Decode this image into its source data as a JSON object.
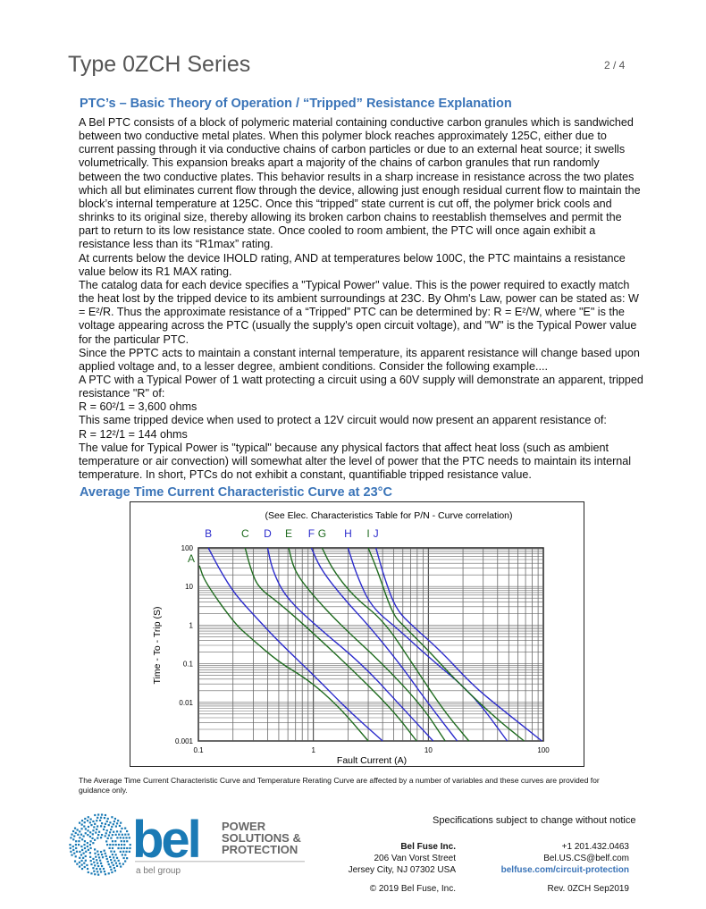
{
  "header": {
    "title": "Type 0ZCH Series",
    "page": "2 / 4"
  },
  "theory": {
    "heading": "PTC’s – Basic Theory of Operation / “Tripped” Resistance Explanation",
    "paragraphs": [
      "A Bel PTC consists of a block of polymeric material containing conductive carbon granules which is sandwiched between two conductive metal plates.  When this polymer block reaches approximately 125C, either due to current passing through it via conductive chains of carbon particles or due to an external heat source; it swells volumetrically.  This expansion breaks apart a majority of the chains of carbon granules that run randomly between the two conductive plates.  This behavior results in a sharp increase in resistance across the two plates which all but eliminates current flow through the device, allowing just enough residual current flow to maintain the block’s internal temperature at 125C.  Once this “tripped” state current is cut off, the polymer brick cools and shrinks to its original size, thereby allowing its broken carbon chains to reestablish themselves and permit the part to return to its low resistance state.  Once cooled to room ambient, the PTC will once again exhibit a resistance less than its “R1max” rating.",
      "At currents below the device IHOLD rating, AND at temperatures below 100C, the PTC maintains a resistance value below its R1 MAX rating.",
      "The catalog data for each device specifies a \"Typical Power\" value. This is the power required to exactly match the heat lost by the tripped device to its ambient surroundings at 23C. By Ohm's Law, power can be stated as: W = E²/R. Thus the approximate resistance of a “Tripped” PTC can be determined by: R = E²/W, where \"E\" is the voltage appearing across the PTC (usually the supply's open circuit voltage), and \"W\" is the Typical Power value for the particular PTC.",
      "Since the PPTC acts to maintain a constant internal temperature, its apparent resistance will change based upon applied voltage and, to a lesser degree, ambient conditions. Consider the following example....",
      "A PTC with a Typical Power of 1 watt protecting a circuit using a 60V supply will demonstrate an apparent, tripped resistance \"R\" of:",
      "R = 60²/1 = 3,600 ohms",
      "This same tripped device when used to protect a 12V circuit would now present an apparent resistance of:",
      "R = 12²/1 = 144 ohms",
      "The value for Typical Power is \"typical\" because any physical factors that affect heat loss (such as ambient temperature or air convection) will somewhat alter the level of power that the PTC needs to maintain its internal temperature. In short, PTCs do not exhibit a constant, quantifiable tripped resistance value."
    ]
  },
  "curve_section": {
    "heading": "Average Time Current Characteristic Curve at 23°C"
  },
  "chart_data": {
    "type": "line",
    "title": "(See Elec. Characteristics Table for P/N - Curve correlation)",
    "xlabel": "Fault Current (A)",
    "ylabel": "Time - To - Trip (S)",
    "xscale": "log",
    "yscale": "log",
    "xlim": [
      0.1,
      100
    ],
    "ylim": [
      0.001,
      100
    ],
    "xticks": [
      "0.1",
      "1",
      "10",
      "100"
    ],
    "yticks": [
      "100",
      "10",
      "1",
      "0.1",
      "0.01",
      "0.001"
    ],
    "grid": true,
    "colors": {
      "blue": "#2b2bcc",
      "green": "#1f6b1f"
    },
    "series": [
      {
        "name": "A",
        "color": "green",
        "points": [
          [
            0.102,
            34.7
          ],
          [
            0.114,
            13
          ],
          [
            0.207,
            1.09
          ],
          [
            0.279,
            0.49
          ],
          [
            0.5,
            0.11
          ],
          [
            0.92,
            0.037
          ],
          [
            1.67,
            0.0077
          ],
          [
            3.0,
            0.001
          ]
        ]
      },
      {
        "name": "B",
        "color": "blue",
        "points": [
          [
            0.122,
            100
          ],
          [
            0.154,
            26.5
          ],
          [
            0.207,
            6.4
          ],
          [
            0.31,
            1.7
          ],
          [
            0.5,
            0.37
          ],
          [
            1.04,
            0.046
          ],
          [
            2.0,
            0.0063
          ],
          [
            4.0,
            0.001
          ]
        ]
      },
      {
        "name": "C",
        "color": "green",
        "points": [
          [
            0.255,
            100
          ],
          [
            0.287,
            26.5
          ],
          [
            0.334,
            9.2
          ],
          [
            0.5,
            3.8
          ],
          [
            0.92,
            0.77
          ],
          [
            2.25,
            0.064
          ],
          [
            4.9,
            0.0063
          ],
          [
            7.9,
            0.001
          ]
        ]
      },
      {
        "name": "D",
        "color": "blue",
        "points": [
          [
            0.4,
            100
          ],
          [
            0.44,
            26.5
          ],
          [
            0.57,
            5.4
          ],
          [
            1.04,
            1.0
          ],
          [
            2.7,
            0.093
          ],
          [
            5.5,
            0.0093
          ],
          [
            11,
            0.001
          ]
        ]
      },
      {
        "name": "E",
        "color": "green",
        "points": [
          [
            0.61,
            100
          ],
          [
            0.68,
            26.5
          ],
          [
            0.92,
            7.6
          ],
          [
            1.67,
            1.1
          ],
          [
            4.1,
            0.093
          ],
          [
            8.9,
            0.0077
          ],
          [
            14,
            0.001
          ]
        ]
      },
      {
        "name": "F",
        "color": "blue",
        "points": [
          [
            0.96,
            100
          ],
          [
            1.17,
            26.5
          ],
          [
            1.88,
            4.5
          ],
          [
            3.0,
            1.0
          ],
          [
            5.5,
            0.11
          ],
          [
            10,
            0.0093
          ],
          [
            17.8,
            0.001
          ]
        ]
      },
      {
        "name": "G",
        "color": "green",
        "points": [
          [
            1.19,
            100
          ],
          [
            1.48,
            26.5
          ],
          [
            2.25,
            5.4
          ],
          [
            4.1,
            1.3
          ],
          [
            7.4,
            0.093
          ],
          [
            13.5,
            0.0063
          ],
          [
            22.5,
            0.001
          ]
        ]
      },
      {
        "name": "H",
        "color": "blue",
        "points": [
          [
            2.0,
            100
          ],
          [
            2.4,
            18.6
          ],
          [
            3.2,
            2.9
          ],
          [
            5.5,
            0.77
          ],
          [
            10,
            0.15
          ],
          [
            24.5,
            0.016
          ],
          [
            48.5,
            0.001
          ]
        ]
      },
      {
        "name": "I",
        "color": "green",
        "points": [
          [
            3.0,
            100
          ],
          [
            3.6,
            26.5
          ],
          [
            4.9,
            1.86
          ],
          [
            6.2,
            0.91
          ],
          [
            10,
            0.22
          ],
          [
            18.2,
            0.032
          ],
          [
            39,
            0.0038
          ],
          [
            68,
            0.001
          ]
        ]
      },
      {
        "name": "J",
        "color": "blue",
        "points": [
          [
            3.5,
            100
          ],
          [
            4.1,
            18.6
          ],
          [
            5.2,
            2.6
          ],
          [
            7.4,
            0.91
          ],
          [
            12.7,
            0.22
          ],
          [
            24.5,
            0.027
          ],
          [
            44.5,
            0.0063
          ],
          [
            97,
            0.001
          ]
        ]
      }
    ]
  },
  "note": "The Average Time Current Characteristic Curve and Temperature Rerating Curve are affected by a number of variables and these curves are provided for guidance only.",
  "footer": {
    "logo": {
      "word": "bel",
      "tagline_lines": [
        "POWER",
        "SOLUTIONS &",
        "PROTECTION"
      ],
      "group": "a bel group",
      "brand_color": "#1a7ab5"
    },
    "spec_notice": "Specifications subject to change without notice",
    "company": "Bel Fuse Inc.",
    "street": "206 Van Vorst Street",
    "city": "Jersey City, NJ 07302 USA",
    "phone": "+1 201.432.0463",
    "email": "Bel.US.CS@belf.com",
    "website": "belfuse.com/circuit-protection",
    "copyright": "© 2019 Bel Fuse, Inc.",
    "revision": "Rev. 0ZCH Sep2019"
  }
}
